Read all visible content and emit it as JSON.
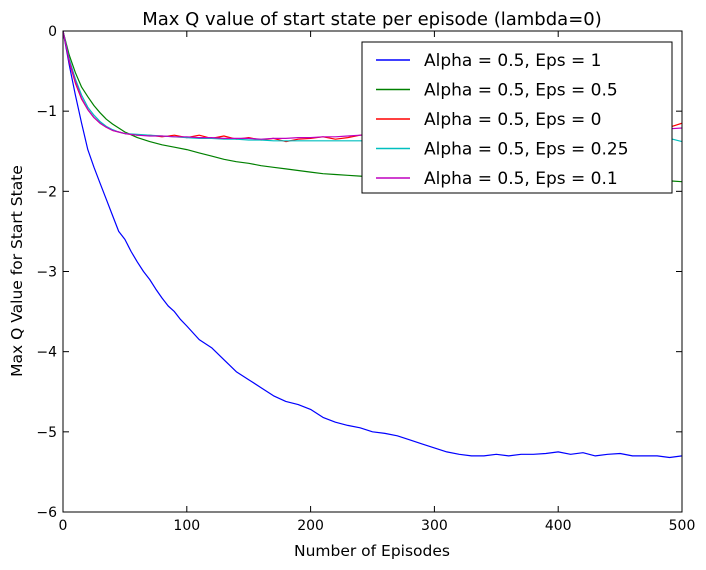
{
  "chart_data": {
    "type": "line",
    "title": "Max Q value of start state per episode (lambda=0)",
    "xlabel": "Number of Episodes",
    "ylabel": "Max Q Value for Start State",
    "xlim": [
      0,
      500
    ],
    "ylim": [
      -6,
      0
    ],
    "xticks": [
      0,
      100,
      200,
      300,
      400,
      500
    ],
    "xtick_labels": [
      "0",
      "100",
      "200",
      "300",
      "400",
      "500"
    ],
    "yticks": [
      0,
      -1,
      -2,
      -3,
      -4,
      -5,
      -6
    ],
    "ytick_labels": [
      "0",
      "−1",
      "−2",
      "−3",
      "−4",
      "−5",
      "−6"
    ],
    "grid": false,
    "legend_position": "top-right",
    "series": [
      {
        "name": "Alpha = 0.5, Eps = 1",
        "color": "#0000ff",
        "x": [
          0,
          5,
          10,
          15,
          20,
          25,
          30,
          35,
          40,
          45,
          50,
          55,
          60,
          65,
          70,
          75,
          80,
          85,
          90,
          95,
          100,
          110,
          120,
          130,
          140,
          150,
          160,
          170,
          180,
          190,
          200,
          210,
          220,
          230,
          240,
          250,
          260,
          270,
          280,
          290,
          300,
          310,
          320,
          330,
          340,
          350,
          360,
          370,
          380,
          390,
          400,
          410,
          420,
          430,
          440,
          450,
          460,
          470,
          480,
          490,
          500
        ],
        "y": [
          0,
          -0.42,
          -0.8,
          -1.15,
          -1.48,
          -1.7,
          -1.9,
          -2.1,
          -2.3,
          -2.5,
          -2.6,
          -2.75,
          -2.88,
          -3.0,
          -3.1,
          -3.22,
          -3.33,
          -3.43,
          -3.5,
          -3.6,
          -3.68,
          -3.85,
          -3.95,
          -4.1,
          -4.25,
          -4.35,
          -4.45,
          -4.55,
          -4.62,
          -4.66,
          -4.72,
          -4.82,
          -4.88,
          -4.92,
          -4.95,
          -5.0,
          -5.02,
          -5.05,
          -5.1,
          -5.15,
          -5.2,
          -5.25,
          -5.28,
          -5.3,
          -5.3,
          -5.28,
          -5.3,
          -5.28,
          -5.28,
          -5.27,
          -5.25,
          -5.28,
          -5.26,
          -5.3,
          -5.28,
          -5.27,
          -5.3,
          -5.3,
          -5.3,
          -5.32,
          -5.3
        ]
      },
      {
        "name": "Alpha = 0.5, Eps = 0.5",
        "color": "#008000",
        "x": [
          0,
          5,
          10,
          15,
          20,
          25,
          30,
          35,
          40,
          45,
          50,
          60,
          70,
          80,
          90,
          100,
          110,
          120,
          130,
          140,
          150,
          160,
          170,
          180,
          190,
          200,
          210,
          220,
          230,
          240,
          250,
          260,
          270,
          280,
          290,
          300,
          310,
          320,
          330,
          340,
          350,
          360,
          370,
          380,
          390,
          400,
          410,
          420,
          430,
          440,
          450,
          460,
          470,
          480,
          490,
          500
        ],
        "y": [
          0,
          -0.3,
          -0.52,
          -0.7,
          -0.82,
          -0.93,
          -1.02,
          -1.1,
          -1.16,
          -1.21,
          -1.26,
          -1.33,
          -1.38,
          -1.42,
          -1.45,
          -1.48,
          -1.52,
          -1.56,
          -1.6,
          -1.63,
          -1.65,
          -1.68,
          -1.7,
          -1.72,
          -1.74,
          -1.76,
          -1.78,
          -1.79,
          -1.8,
          -1.81,
          -1.82,
          -1.83,
          -1.84,
          -1.84,
          -1.85,
          -1.85,
          -1.85,
          -1.86,
          -1.86,
          -1.86,
          -1.86,
          -1.86,
          -1.86,
          -1.86,
          -1.86,
          -1.86,
          -1.86,
          -1.86,
          -1.86,
          -1.86,
          -1.86,
          -1.86,
          -1.86,
          -1.86,
          -1.87,
          -1.88
        ]
      },
      {
        "name": "Alpha = 0.5, Eps = 0",
        "color": "#ff0000",
        "x": [
          0,
          5,
          10,
          15,
          20,
          25,
          30,
          35,
          40,
          45,
          50,
          60,
          70,
          80,
          90,
          100,
          110,
          120,
          130,
          140,
          150,
          160,
          170,
          180,
          190,
          200,
          210,
          220,
          230,
          240,
          250,
          260,
          270,
          280,
          290,
          300,
          310,
          320,
          330,
          340,
          350,
          360,
          370,
          380,
          390,
          400,
          410,
          420,
          430,
          440,
          450,
          460,
          470,
          480,
          490,
          500
        ],
        "y": [
          0,
          -0.38,
          -0.65,
          -0.85,
          -0.98,
          -1.08,
          -1.15,
          -1.2,
          -1.24,
          -1.26,
          -1.28,
          -1.3,
          -1.3,
          -1.32,
          -1.3,
          -1.33,
          -1.3,
          -1.34,
          -1.31,
          -1.35,
          -1.33,
          -1.36,
          -1.34,
          -1.38,
          -1.35,
          -1.34,
          -1.32,
          -1.35,
          -1.33,
          -1.3,
          -1.28,
          -1.3,
          -1.27,
          -1.3,
          -1.28,
          -1.27,
          -1.25,
          -1.27,
          -1.25,
          -1.24,
          -1.25,
          -1.24,
          -1.22,
          -1.24,
          -1.23,
          -1.22,
          -1.21,
          -1.2,
          -1.21,
          -1.22,
          -1.2,
          -1.21,
          -1.2,
          -1.2,
          -1.2,
          -1.15
        ]
      },
      {
        "name": "Alpha = 0.5, Eps = 0.25",
        "color": "#00bfbf",
        "x": [
          0,
          5,
          10,
          15,
          20,
          25,
          30,
          35,
          40,
          45,
          50,
          60,
          70,
          80,
          90,
          100,
          110,
          120,
          130,
          140,
          150,
          160,
          170,
          180,
          190,
          200,
          210,
          220,
          230,
          240,
          250,
          260,
          270,
          280,
          290,
          300,
          310,
          320,
          330,
          340,
          350,
          360,
          370,
          380,
          390,
          400,
          410,
          420,
          430,
          440,
          450,
          460,
          470,
          480,
          490,
          500
        ],
        "y": [
          0,
          -0.35,
          -0.6,
          -0.8,
          -0.95,
          -1.05,
          -1.13,
          -1.19,
          -1.23,
          -1.26,
          -1.28,
          -1.29,
          -1.3,
          -1.31,
          -1.32,
          -1.33,
          -1.34,
          -1.34,
          -1.35,
          -1.35,
          -1.36,
          -1.36,
          -1.37,
          -1.37,
          -1.37,
          -1.37,
          -1.37,
          -1.37,
          -1.37,
          -1.37,
          -1.37,
          -1.37,
          -1.37,
          -1.37,
          -1.37,
          -1.37,
          -1.37,
          -1.37,
          -1.37,
          -1.37,
          -1.37,
          -1.37,
          -1.37,
          -1.37,
          -1.37,
          -1.37,
          -1.37,
          -1.37,
          -1.37,
          -1.37,
          -1.37,
          -1.36,
          -1.36,
          -1.35,
          -1.34,
          -1.38
        ]
      },
      {
        "name": "Alpha = 0.5, Eps = 0.1",
        "color": "#bf00bf",
        "x": [
          0,
          5,
          10,
          15,
          20,
          25,
          30,
          35,
          40,
          45,
          50,
          60,
          70,
          80,
          90,
          100,
          110,
          120,
          130,
          140,
          150,
          160,
          170,
          180,
          190,
          200,
          210,
          220,
          230,
          240,
          250,
          260,
          270,
          280,
          290,
          300,
          310,
          320,
          330,
          340,
          350,
          360,
          370,
          380,
          390,
          400,
          410,
          420,
          430,
          440,
          450,
          460,
          470,
          480,
          490,
          500
        ],
        "y": [
          0,
          -0.37,
          -0.63,
          -0.84,
          -0.98,
          -1.08,
          -1.15,
          -1.2,
          -1.24,
          -1.26,
          -1.28,
          -1.3,
          -1.31,
          -1.31,
          -1.32,
          -1.32,
          -1.33,
          -1.33,
          -1.34,
          -1.34,
          -1.34,
          -1.35,
          -1.34,
          -1.34,
          -1.33,
          -1.33,
          -1.32,
          -1.32,
          -1.31,
          -1.3,
          -1.29,
          -1.28,
          -1.28,
          -1.27,
          -1.27,
          -1.26,
          -1.26,
          -1.26,
          -1.25,
          -1.25,
          -1.25,
          -1.25,
          -1.24,
          -1.24,
          -1.24,
          -1.24,
          -1.23,
          -1.23,
          -1.23,
          -1.23,
          -1.22,
          -1.22,
          -1.22,
          -1.22,
          -1.22,
          -1.21
        ]
      }
    ]
  }
}
